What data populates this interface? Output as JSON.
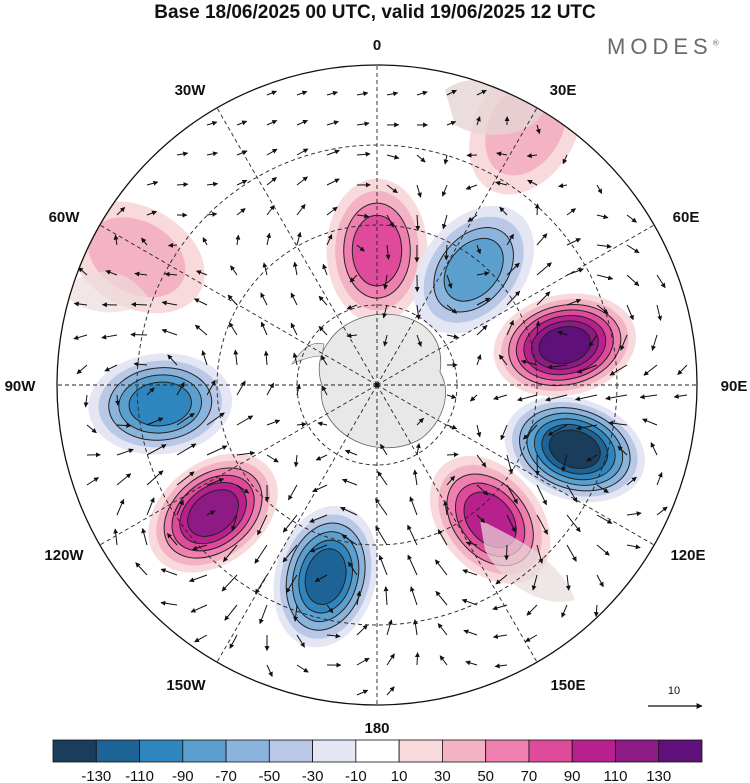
{
  "title": "Base 18/06/2025 00 UTC, valid 19/06/2025 12 UTC",
  "logo": "MODES",
  "logo_mark": "®",
  "longitude_labels": [
    "0",
    "30E",
    "60E",
    "90E",
    "120E",
    "150E",
    "180",
    "150W",
    "120W",
    "90W",
    "60W",
    "30W"
  ],
  "vector_reference": "10",
  "colorbar": {
    "labels": [
      "-130",
      "-110",
      "-90",
      "-70",
      "-50",
      "-30",
      "-10",
      "10",
      "30",
      "50",
      "70",
      "90",
      "110",
      "130"
    ],
    "colors": [
      "#1a3d5c",
      "#1d6395",
      "#2f86be",
      "#5b9fce",
      "#8ab4dc",
      "#b8c8e6",
      "#e4e6f3",
      "#ffffff",
      "#f8d9dc",
      "#f4b3c4",
      "#ee7fae",
      "#df4a9b",
      "#b8208e",
      "#8e1a86",
      "#5f1179"
    ]
  },
  "anomalies": [
    {
      "lon": 0,
      "lat_dist": 0.42,
      "value": 70
    },
    {
      "lon": 40,
      "lat_dist": 0.47,
      "value": -80
    },
    {
      "lon": 78,
      "lat_dist": 0.6,
      "value": 130
    },
    {
      "lon": 108,
      "lat_dist": 0.65,
      "value": -135
    },
    {
      "lon": 140,
      "lat_dist": 0.55,
      "value": 100
    },
    {
      "lon": -165,
      "lat_dist": 0.62,
      "value": -110
    },
    {
      "lon": -128,
      "lat_dist": 0.65,
      "value": 125
    },
    {
      "lon": -95,
      "lat_dist": 0.68,
      "value": -90
    },
    {
      "lon": -62,
      "lat_dist": 0.85,
      "value": 30
    },
    {
      "lon": 30,
      "lat_dist": 0.93,
      "value": 30
    }
  ]
}
